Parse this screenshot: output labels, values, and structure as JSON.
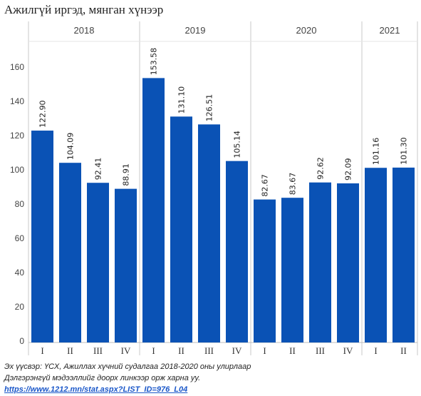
{
  "page": {
    "title": "Ажилгүй иргэд, мянган хүнээр",
    "source_line": "Эх үүсвэр: ҮСХ, Ажиллах хүчний судалгаа 2018-2020 оны улирлаар",
    "detail_line": "Дэлгэрэнгүй мэдээллийг доорх линкээр орж харна уу.",
    "link_text": "https://www.1212.mn/stat.aspx?LIST_ID=976_L04"
  },
  "chart_data": {
    "type": "bar",
    "title": "Ажилгүй иргэд, мянган хүнээр",
    "xlabel": "",
    "ylabel": "",
    "ylim": [
      0,
      170
    ],
    "yticks": [
      0,
      20,
      40,
      60,
      80,
      100,
      120,
      140,
      160
    ],
    "grid": false,
    "bar_color": "#0a52b5",
    "groups": [
      {
        "label": "2018",
        "categories": [
          "I",
          "II",
          "III",
          "IV"
        ],
        "values": [
          122.9,
          104.09,
          92.41,
          88.91
        ],
        "value_labels": [
          "122.90",
          "104.09",
          "92.41",
          "88.91"
        ]
      },
      {
        "label": "2019",
        "categories": [
          "I",
          "II",
          "III",
          "IV"
        ],
        "values": [
          153.58,
          131.1,
          126.51,
          105.14
        ],
        "value_labels": [
          "153.58",
          "131.10",
          "126.51",
          "105.14"
        ]
      },
      {
        "label": "2020",
        "categories": [
          "I",
          "II",
          "III",
          "IV"
        ],
        "values": [
          82.67,
          83.67,
          92.62,
          92.09
        ],
        "value_labels": [
          "82.67",
          "83.67",
          "92.62",
          "92.09"
        ]
      },
      {
        "label": "2021",
        "categories": [
          "I",
          "II"
        ],
        "values": [
          101.16,
          101.3
        ],
        "value_labels": [
          "101.16",
          "101.30"
        ]
      }
    ]
  }
}
